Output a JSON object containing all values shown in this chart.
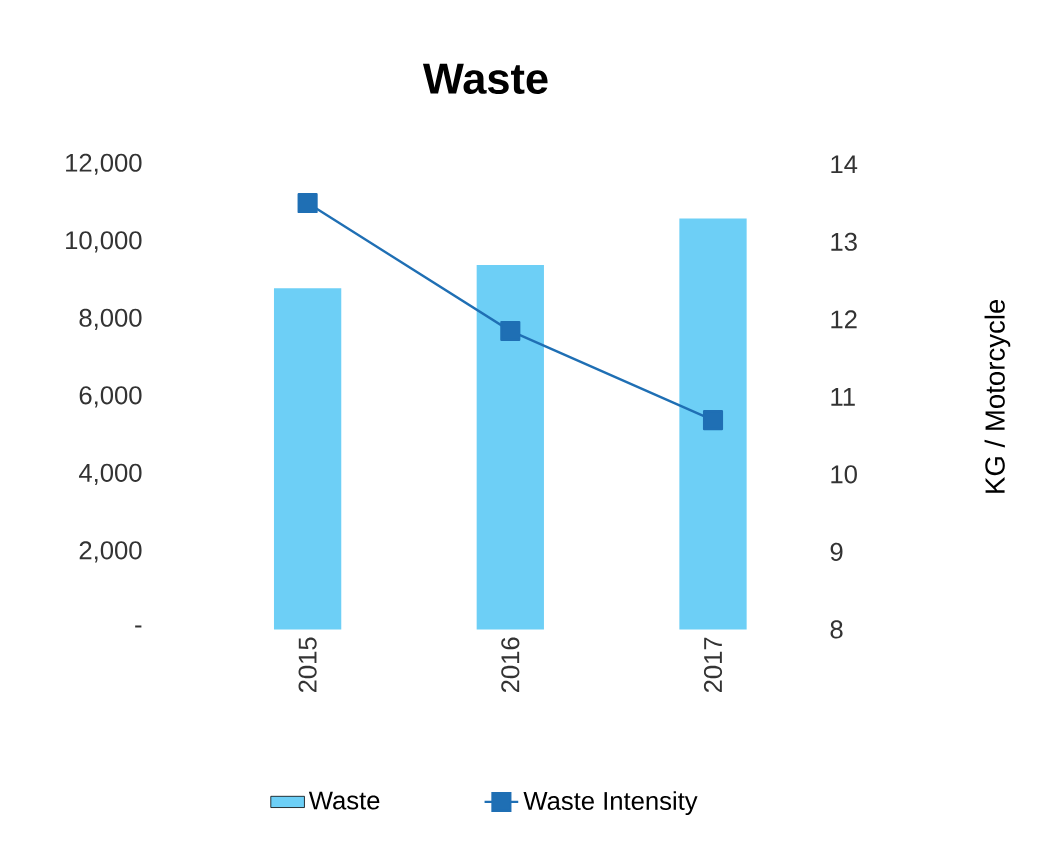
{
  "chart_data": {
    "type": "bar",
    "title": "Waste",
    "y2label": "KG / Motorcycle",
    "categories": [
      "2015",
      "2016",
      "2017"
    ],
    "series": [
      {
        "name": "Waste",
        "color": "#6dcff6",
        "values": [
          8800,
          9400,
          10600
        ]
      },
      {
        "name": "Waste Intensity",
        "type": "line",
        "axis": "y2",
        "color": "#1f6fb4",
        "marker": "square",
        "values": [
          13.5,
          11.85,
          10.7
        ]
      }
    ],
    "ylim": [
      0,
      12000
    ],
    "yticks": [
      {
        "value": 0,
        "label": "-"
      },
      {
        "value": 2000,
        "label": "2,000"
      },
      {
        "value": 4000,
        "label": "4,000"
      },
      {
        "value": 6000,
        "label": "6,000"
      },
      {
        "value": 8000,
        "label": "8,000"
      },
      {
        "value": 10000,
        "label": "10,000"
      },
      {
        "value": 12000,
        "label": "12,000"
      }
    ],
    "y2lim": [
      8,
      14
    ],
    "y2ticks": [
      8,
      9,
      10,
      11,
      12,
      13,
      14
    ],
    "legend": "bottom"
  }
}
